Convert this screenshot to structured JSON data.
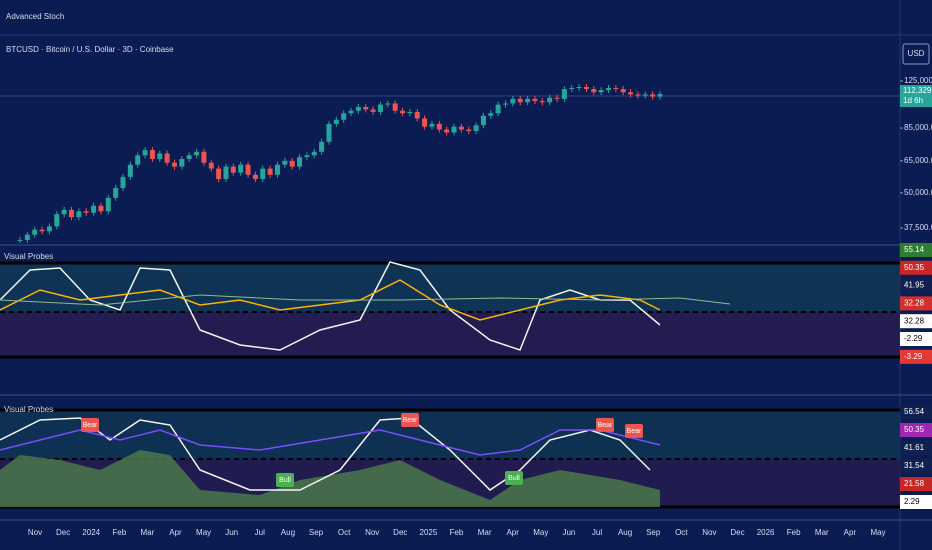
{
  "app_title": "Advanced Stoch",
  "symbol": "BTCUSD · Bitcoin / U.S. Dollar · 3D · Coinbase",
  "currency": "USD",
  "price": {
    "scale": "log",
    "yticks": [
      {
        "value": 125000,
        "label": "125,000.00"
      },
      {
        "value": 85000,
        "label": "85,000.00"
      },
      {
        "value": 65000,
        "label": "65,000.00"
      },
      {
        "value": 50000,
        "label": "50,000.00"
      },
      {
        "value": 37500,
        "label": "37,500.00"
      }
    ],
    "closes": [
      34000,
      35500,
      37000,
      36500,
      38000,
      42000,
      43500,
      41000,
      43000,
      42500,
      45000,
      43000,
      48000,
      52000,
      57000,
      63000,
      68000,
      71000,
      66000,
      69000,
      64000,
      62000,
      66000,
      68000,
      70000,
      64000,
      61000,
      56000,
      62000,
      59000,
      63000,
      58000,
      56000,
      61000,
      58000,
      63000,
      65000,
      62000,
      67000,
      68000,
      70000,
      76000,
      88000,
      91000,
      96000,
      98000,
      101000,
      99000,
      97000,
      103000,
      104000,
      98000,
      96000,
      97000,
      92000,
      86000,
      88000,
      84000,
      82000,
      86000,
      84000,
      83000,
      87000,
      94000,
      96000,
      103000,
      104000,
      108000,
      105000,
      108000,
      106000,
      105000,
      109000,
      108000,
      117000,
      118000,
      119000,
      117000,
      114000,
      116000,
      118000,
      117000,
      114000,
      112000,
      111000,
      112000,
      110000,
      112329.53
    ],
    "last_label": "112,329.53",
    "countdown": "1d 6h",
    "up_color": "#26a69a",
    "down_color": "#ef5350"
  },
  "panes": [
    {
      "title": "Visual Probes",
      "labels": [
        {
          "text": "55.14",
          "bg": "#2e7d32",
          "fg": "#ffffff"
        },
        {
          "text": "50.35",
          "bg": "#c62828",
          "fg": "#ffffff"
        },
        {
          "text": "41.95",
          "bg": "#102050",
          "fg": "#ffffff"
        },
        {
          "text": "32.28",
          "bg": "#d32f2f",
          "fg": "#ffffff"
        },
        {
          "text": "32.28",
          "bg": "#ffffff",
          "fg": "#000000"
        },
        {
          "text": "-2.29",
          "bg": "#ffffff",
          "fg": "#000000"
        },
        {
          "text": "-3.29",
          "bg": "#e53935",
          "fg": "#ffffff"
        }
      ]
    },
    {
      "title": "Visual Probes",
      "labels": [
        {
          "text": "56.54",
          "bg": "#102050",
          "fg": "#ffffff"
        },
        {
          "text": "50.35",
          "bg": "#9c27b0",
          "fg": "#ffffff"
        },
        {
          "text": "41.61",
          "bg": "#102050",
          "fg": "#ffffff"
        },
        {
          "text": "31.54",
          "bg": "#102050",
          "fg": "#ffffff"
        },
        {
          "text": "21.58",
          "bg": "#c62828",
          "fg": "#ffffff"
        },
        {
          "text": "2.29",
          "bg": "#ffffff",
          "fg": "#000000"
        }
      ],
      "signals": [
        "Bear",
        "Bear",
        "Bear",
        "Bear",
        "Bull",
        "Bull"
      ]
    }
  ],
  "time_axis": [
    "Nov",
    "Dec",
    "2024",
    "Feb",
    "Mar",
    "Apr",
    "May",
    "Jun",
    "Jul",
    "Aug",
    "Sep",
    "Oct",
    "Nov",
    "Dec",
    "2025",
    "Feb",
    "Mar",
    "Apr",
    "May",
    "Jun",
    "Jul",
    "Aug",
    "Sep",
    "Oct",
    "Nov",
    "Dec",
    "2026",
    "Feb",
    "Mar",
    "Apr",
    "May"
  ]
}
